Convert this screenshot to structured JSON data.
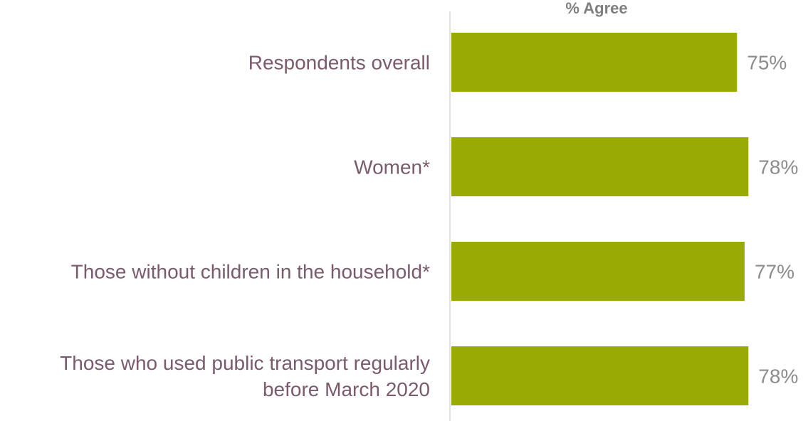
{
  "chart_data": {
    "type": "bar",
    "orientation": "horizontal",
    "column_header": "% Agree",
    "categories": [
      [
        "Respondents overall"
      ],
      [
        "Women*"
      ],
      [
        "Those without children in the household*"
      ],
      [
        "Those who used public transport regularly",
        "before March 2020"
      ]
    ],
    "series": [
      {
        "values": [
          75,
          78,
          77,
          78
        ]
      }
    ],
    "value_labels": [
      "75%",
      "78%",
      "77%",
      "78%"
    ],
    "value_suffix": "%",
    "xlim": [
      0,
      100
    ],
    "grid": false,
    "legend": "none"
  },
  "colors": {
    "bar": "#9aaa05",
    "axis": "#d9d9d9",
    "category_text": "#7b5a6e",
    "value_text": "#8c8c8c",
    "header_text": "#7f7f7f"
  }
}
